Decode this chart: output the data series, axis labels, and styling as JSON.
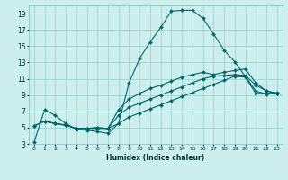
{
  "xlabel": "Humidex (Indice chaleur)",
  "bg_color": "#cceeed",
  "grid_color": "#99cccc",
  "line_color": "#006666",
  "xlim": [
    -0.5,
    23.5
  ],
  "ylim": [
    3,
    20
  ],
  "xticks": [
    0,
    1,
    2,
    3,
    4,
    5,
    6,
    7,
    8,
    9,
    10,
    11,
    12,
    13,
    14,
    15,
    16,
    17,
    18,
    19,
    20,
    21,
    22,
    23
  ],
  "yticks": [
    3,
    5,
    7,
    9,
    11,
    13,
    15,
    17,
    19
  ],
  "curve1_x": [
    0,
    1,
    2,
    3,
    4,
    5,
    6,
    7,
    8,
    9,
    10,
    11,
    12,
    13,
    14,
    15,
    16,
    17,
    18,
    19,
    20,
    21,
    22,
    23
  ],
  "curve1_y": [
    3.2,
    7.2,
    6.5,
    5.5,
    4.8,
    4.7,
    4.5,
    4.3,
    5.5,
    10.5,
    13.5,
    15.5,
    17.3,
    19.3,
    19.4,
    19.4,
    18.4,
    16.5,
    14.5,
    13.1,
    11.3,
    9.5,
    9.1,
    9.3
  ],
  "curve2_x": [
    0,
    1,
    2,
    3,
    4,
    5,
    6,
    7,
    8,
    9,
    10,
    11,
    12,
    13,
    14,
    15,
    16,
    17,
    18,
    19,
    20,
    21,
    22,
    23
  ],
  "curve2_y": [
    5.2,
    5.8,
    5.5,
    5.3,
    4.9,
    4.9,
    4.9,
    4.9,
    5.5,
    6.3,
    6.8,
    7.3,
    7.8,
    8.3,
    8.8,
    9.3,
    9.8,
    10.3,
    10.8,
    11.3,
    11.2,
    9.2,
    9.2,
    9.2
  ],
  "curve3_x": [
    0,
    1,
    2,
    3,
    4,
    5,
    6,
    7,
    8,
    9,
    10,
    11,
    12,
    13,
    14,
    15,
    16,
    17,
    18,
    19,
    20,
    21,
    22,
    23
  ],
  "curve3_y": [
    5.2,
    5.8,
    5.5,
    5.3,
    4.9,
    4.9,
    5.0,
    4.9,
    6.5,
    7.5,
    8.0,
    8.5,
    9.0,
    9.5,
    10.0,
    10.5,
    11.0,
    11.3,
    11.4,
    11.5,
    11.4,
    10.2,
    9.5,
    9.2
  ],
  "curve4_x": [
    0,
    1,
    2,
    3,
    4,
    5,
    6,
    7,
    8,
    9,
    10,
    11,
    12,
    13,
    14,
    15,
    16,
    17,
    18,
    19,
    20,
    21,
    22,
    23
  ],
  "curve4_y": [
    5.2,
    5.8,
    5.5,
    5.3,
    4.9,
    4.9,
    5.0,
    4.9,
    7.2,
    8.5,
    9.2,
    9.8,
    10.2,
    10.7,
    11.2,
    11.5,
    11.8,
    11.5,
    11.8,
    12.0,
    12.2,
    10.5,
    9.5,
    9.2
  ]
}
